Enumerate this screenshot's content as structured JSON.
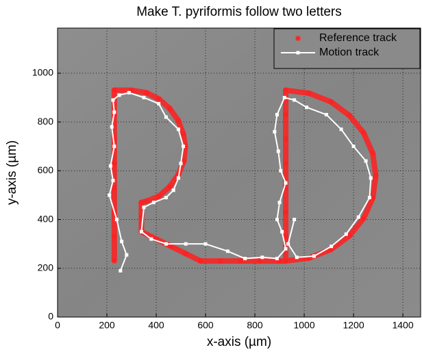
{
  "chart_data": {
    "type": "line",
    "title": "Make T. pyriformis follow two letters",
    "x_label": "x-axis (µm)",
    "y_label": "y-axis (µm)",
    "xlim": [
      0,
      1472
    ],
    "ylim": [
      0,
      1185
    ],
    "xticks": [
      0,
      200,
      400,
      600,
      800,
      1000,
      1200,
      1400
    ],
    "yticks": [
      0,
      200,
      400,
      600,
      800,
      1000
    ],
    "grid": true,
    "legend": "upper right",
    "series": [
      {
        "name": "Reference track",
        "color": "#ff2020",
        "marker": "*",
        "x": [
          230,
          230,
          230,
          230,
          230,
          230,
          230,
          230,
          300,
          360,
          410,
          455,
          490,
          510,
          518,
          512,
          490,
          455,
          410,
          360,
          340,
          340,
          340,
          400,
          460,
          520,
          580,
          660,
          740,
          820,
          900,
          925,
          925,
          925,
          925,
          925,
          925,
          925,
          925,
          1019,
          1108,
          1183,
          1241,
          1278,
          1290,
          1278,
          1241,
          1183,
          1108,
          1019,
          925
        ],
        "y": [
          230,
          330,
          430,
          530,
          630,
          730,
          830,
          930,
          930,
          920,
          895,
          855,
          805,
          750,
          700,
          640,
          585,
          535,
          495,
          475,
          470,
          410,
          350,
          320,
          290,
          260,
          230,
          230,
          230,
          230,
          230,
          230,
          330,
          430,
          530,
          630,
          730,
          830,
          930,
          918,
          883,
          827,
          755,
          671,
          580,
          489,
          405,
          333,
          277,
          242,
          230
        ]
      },
      {
        "name": "Motion track",
        "color": "#ffffff",
        "marker": "s",
        "x": [
          255,
          280,
          260,
          240,
          210,
          225,
          215,
          230,
          220,
          230,
          225,
          250,
          290,
          350,
          410,
          440,
          490,
          510,
          500,
          490,
          470,
          440,
          390,
          350,
          340,
          380,
          440,
          520,
          600,
          690,
          760,
          830,
          890,
          925,
          910,
          890,
          900,
          925,
          905,
          895,
          880,
          890,
          920,
          960,
          1010,
          1090,
          1150,
          1200,
          1250,
          1270,
          1265,
          1220,
          1170,
          1110,
          1040,
          970,
          935,
          960
        ],
        "y": [
          190,
          255,
          310,
          400,
          500,
          560,
          620,
          700,
          780,
          840,
          890,
          910,
          920,
          900,
          875,
          820,
          770,
          700,
          630,
          570,
          520,
          490,
          470,
          450,
          350,
          320,
          300,
          300,
          300,
          270,
          240,
          245,
          240,
          280,
          350,
          400,
          470,
          550,
          600,
          680,
          760,
          830,
          900,
          890,
          860,
          830,
          770,
          700,
          640,
          570,
          490,
          410,
          340,
          290,
          250,
          245,
          300,
          400
        ]
      }
    ]
  }
}
